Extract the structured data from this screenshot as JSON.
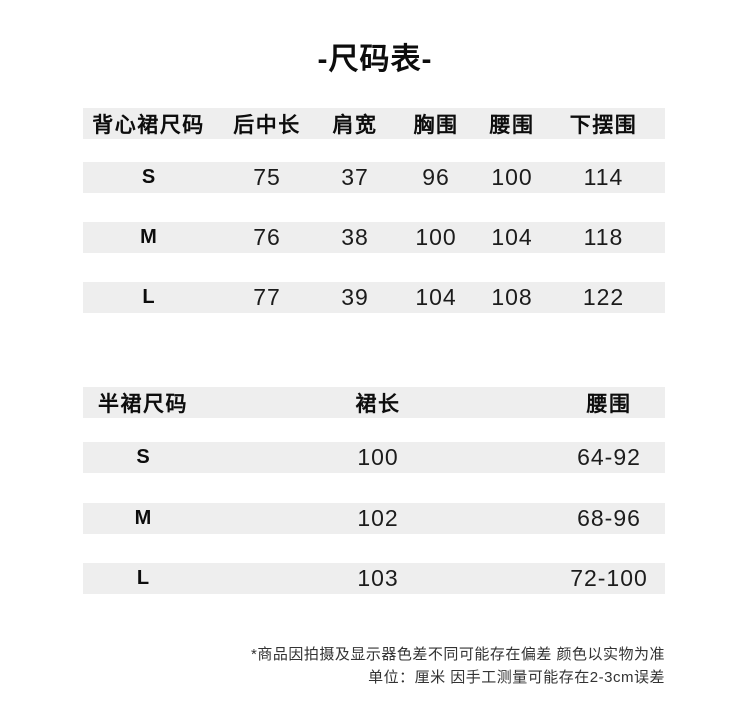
{
  "title": "-尺码表-",
  "tables": [
    {
      "name": "背心裙尺码表",
      "headers": [
        "背心裙尺码",
        "后中长",
        "肩宽",
        "胸围",
        "腰围",
        "下摆围"
      ],
      "rows": [
        {
          "size": "S",
          "cells": [
            "75",
            "37",
            "96",
            "100",
            "114"
          ]
        },
        {
          "size": "M",
          "cells": [
            "76",
            "38",
            "100",
            "104",
            "118"
          ]
        },
        {
          "size": "L",
          "cells": [
            "77",
            "39",
            "104",
            "108",
            "122"
          ]
        }
      ]
    },
    {
      "name": "半裙尺码表",
      "headers": [
        "半裙尺码",
        "裙长",
        "腰围"
      ],
      "rows": [
        {
          "size": "S",
          "cells": [
            "100",
            "64-92"
          ]
        },
        {
          "size": "M",
          "cells": [
            "102",
            "68-96"
          ]
        },
        {
          "size": "L",
          "cells": [
            "103",
            "72-100"
          ]
        }
      ]
    }
  ],
  "footnotes": {
    "line1": "*商品因拍摄及显示器色差不同可能存在偏差 颜色以实物为准",
    "line2": "单位：厘米 因手工测量可能存在2-3cm误差"
  },
  "colors": {
    "row_background": "#eeeeee",
    "table_text": "#111111",
    "footnote_text": "#333333",
    "page_background": "#ffffff"
  }
}
